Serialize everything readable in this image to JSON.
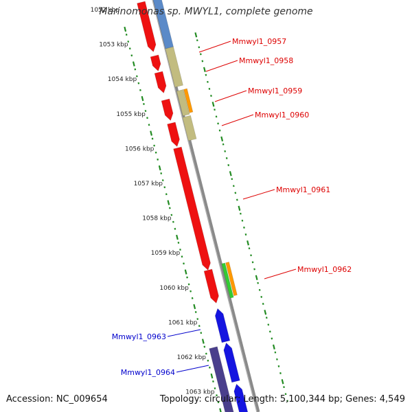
{
  "title": "Marinomonas sp. MWYL1, complete genome",
  "footer": {
    "accession": "Accession: NC_009654",
    "topology": "Topology: circular; Length: 5,100,344 bp; Genes: 4,549"
  },
  "colors": {
    "forward_gene_label": "#dd0000",
    "reverse_gene_label": "#0000cc",
    "tick": "#228b22",
    "backbone": "#808080"
  },
  "kbp_ticks": [
    "1052 kbp",
    "1053 kbp",
    "1054 kbp",
    "1055 kbp",
    "1056 kbp",
    "1057 kbp",
    "1058 kbp",
    "1059 kbp",
    "1060 kbp",
    "1061 kbp",
    "1062 kbp",
    "1063 kbp"
  ],
  "gene_labels": [
    {
      "text": "Mmwyl1_0957",
      "strand": "forward"
    },
    {
      "text": "Mmwyl1_0958",
      "strand": "forward"
    },
    {
      "text": "Mmwyl1_0959",
      "strand": "forward"
    },
    {
      "text": "Mmwyl1_0960",
      "strand": "forward"
    },
    {
      "text": "Mmwyl1_0961",
      "strand": "forward"
    },
    {
      "text": "Mmwyl1_0962",
      "strand": "forward"
    },
    {
      "text": "Mmwyl1_0963",
      "strand": "reverse"
    },
    {
      "text": "Mmwyl1_0964",
      "strand": "reverse"
    }
  ]
}
